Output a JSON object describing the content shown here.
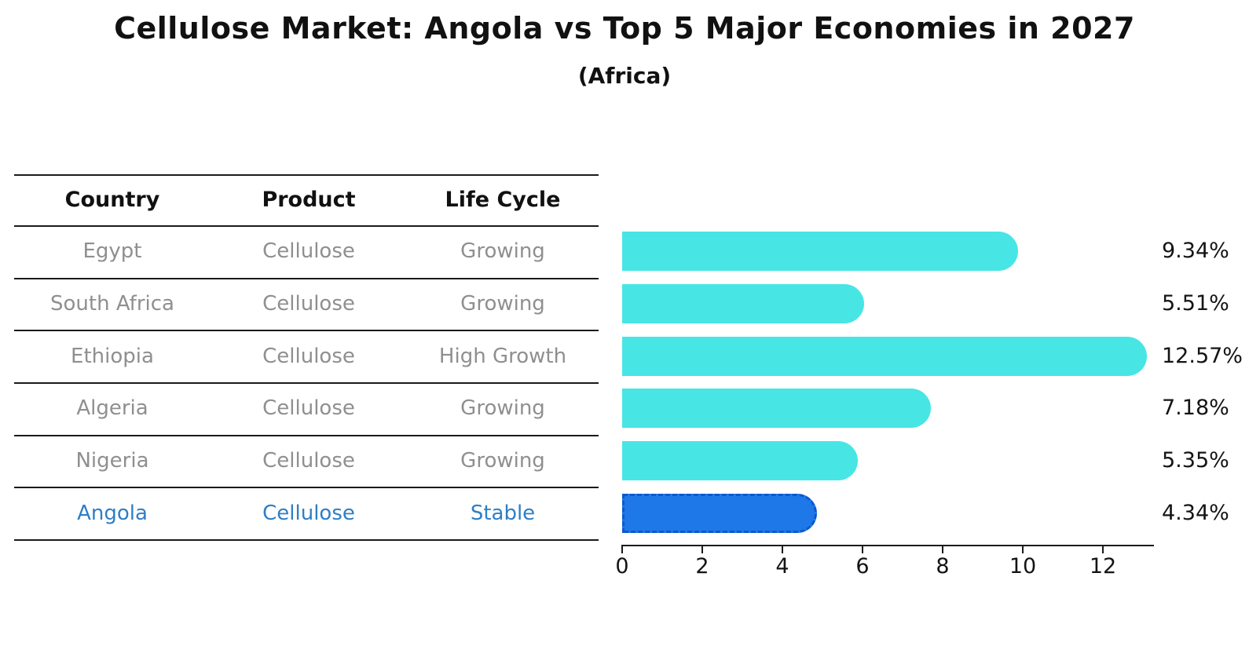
{
  "header": {
    "title": "Cellulose Market: Angola vs Top 5 Major Economies in 2027",
    "subtitle": "(Africa)"
  },
  "table": {
    "columns": [
      "Country",
      "Product",
      "Life Cycle"
    ],
    "rows": [
      {
        "country": "Egypt",
        "product": "Cellulose",
        "life_cycle": "Growing",
        "highlight": false
      },
      {
        "country": "South Africa",
        "product": "Cellulose",
        "life_cycle": "Growing",
        "highlight": false
      },
      {
        "country": "Ethiopia",
        "product": "Cellulose",
        "life_cycle": "High Growth",
        "highlight": false
      },
      {
        "country": "Algeria",
        "product": "Cellulose",
        "life_cycle": "Growing",
        "highlight": false
      },
      {
        "country": "Nigeria",
        "product": "Cellulose",
        "life_cycle": "Growing",
        "highlight": false
      },
      {
        "country": "Angola",
        "product": "Cellulose",
        "life_cycle": "Stable",
        "highlight": true
      }
    ]
  },
  "chart_data": {
    "type": "bar",
    "orientation": "horizontal",
    "title": "Cellulose Market: Angola vs Top 5 Major Economies in 2027",
    "subtitle": "(Africa)",
    "categories": [
      "Egypt",
      "South Africa",
      "Ethiopia",
      "Algeria",
      "Nigeria",
      "Angola"
    ],
    "values": [
      9.34,
      5.51,
      12.57,
      7.18,
      5.35,
      4.34
    ],
    "value_labels": [
      "9.34%",
      "5.51%",
      "12.57%",
      "7.18%",
      "5.35%",
      "4.34%"
    ],
    "x_ticks": [
      "0",
      "2",
      "4",
      "6",
      "8",
      "10",
      "12"
    ],
    "x_tick_values": [
      0,
      2,
      4,
      6,
      8,
      10,
      12
    ],
    "xlim": [
      0,
      13.27
    ],
    "grid": false,
    "legend": false,
    "highlight_index": 5,
    "bar_color": "#48e5e5",
    "highlight_bar_color": "#1e78e8",
    "highlight_text_color": "#2e7ec6"
  }
}
